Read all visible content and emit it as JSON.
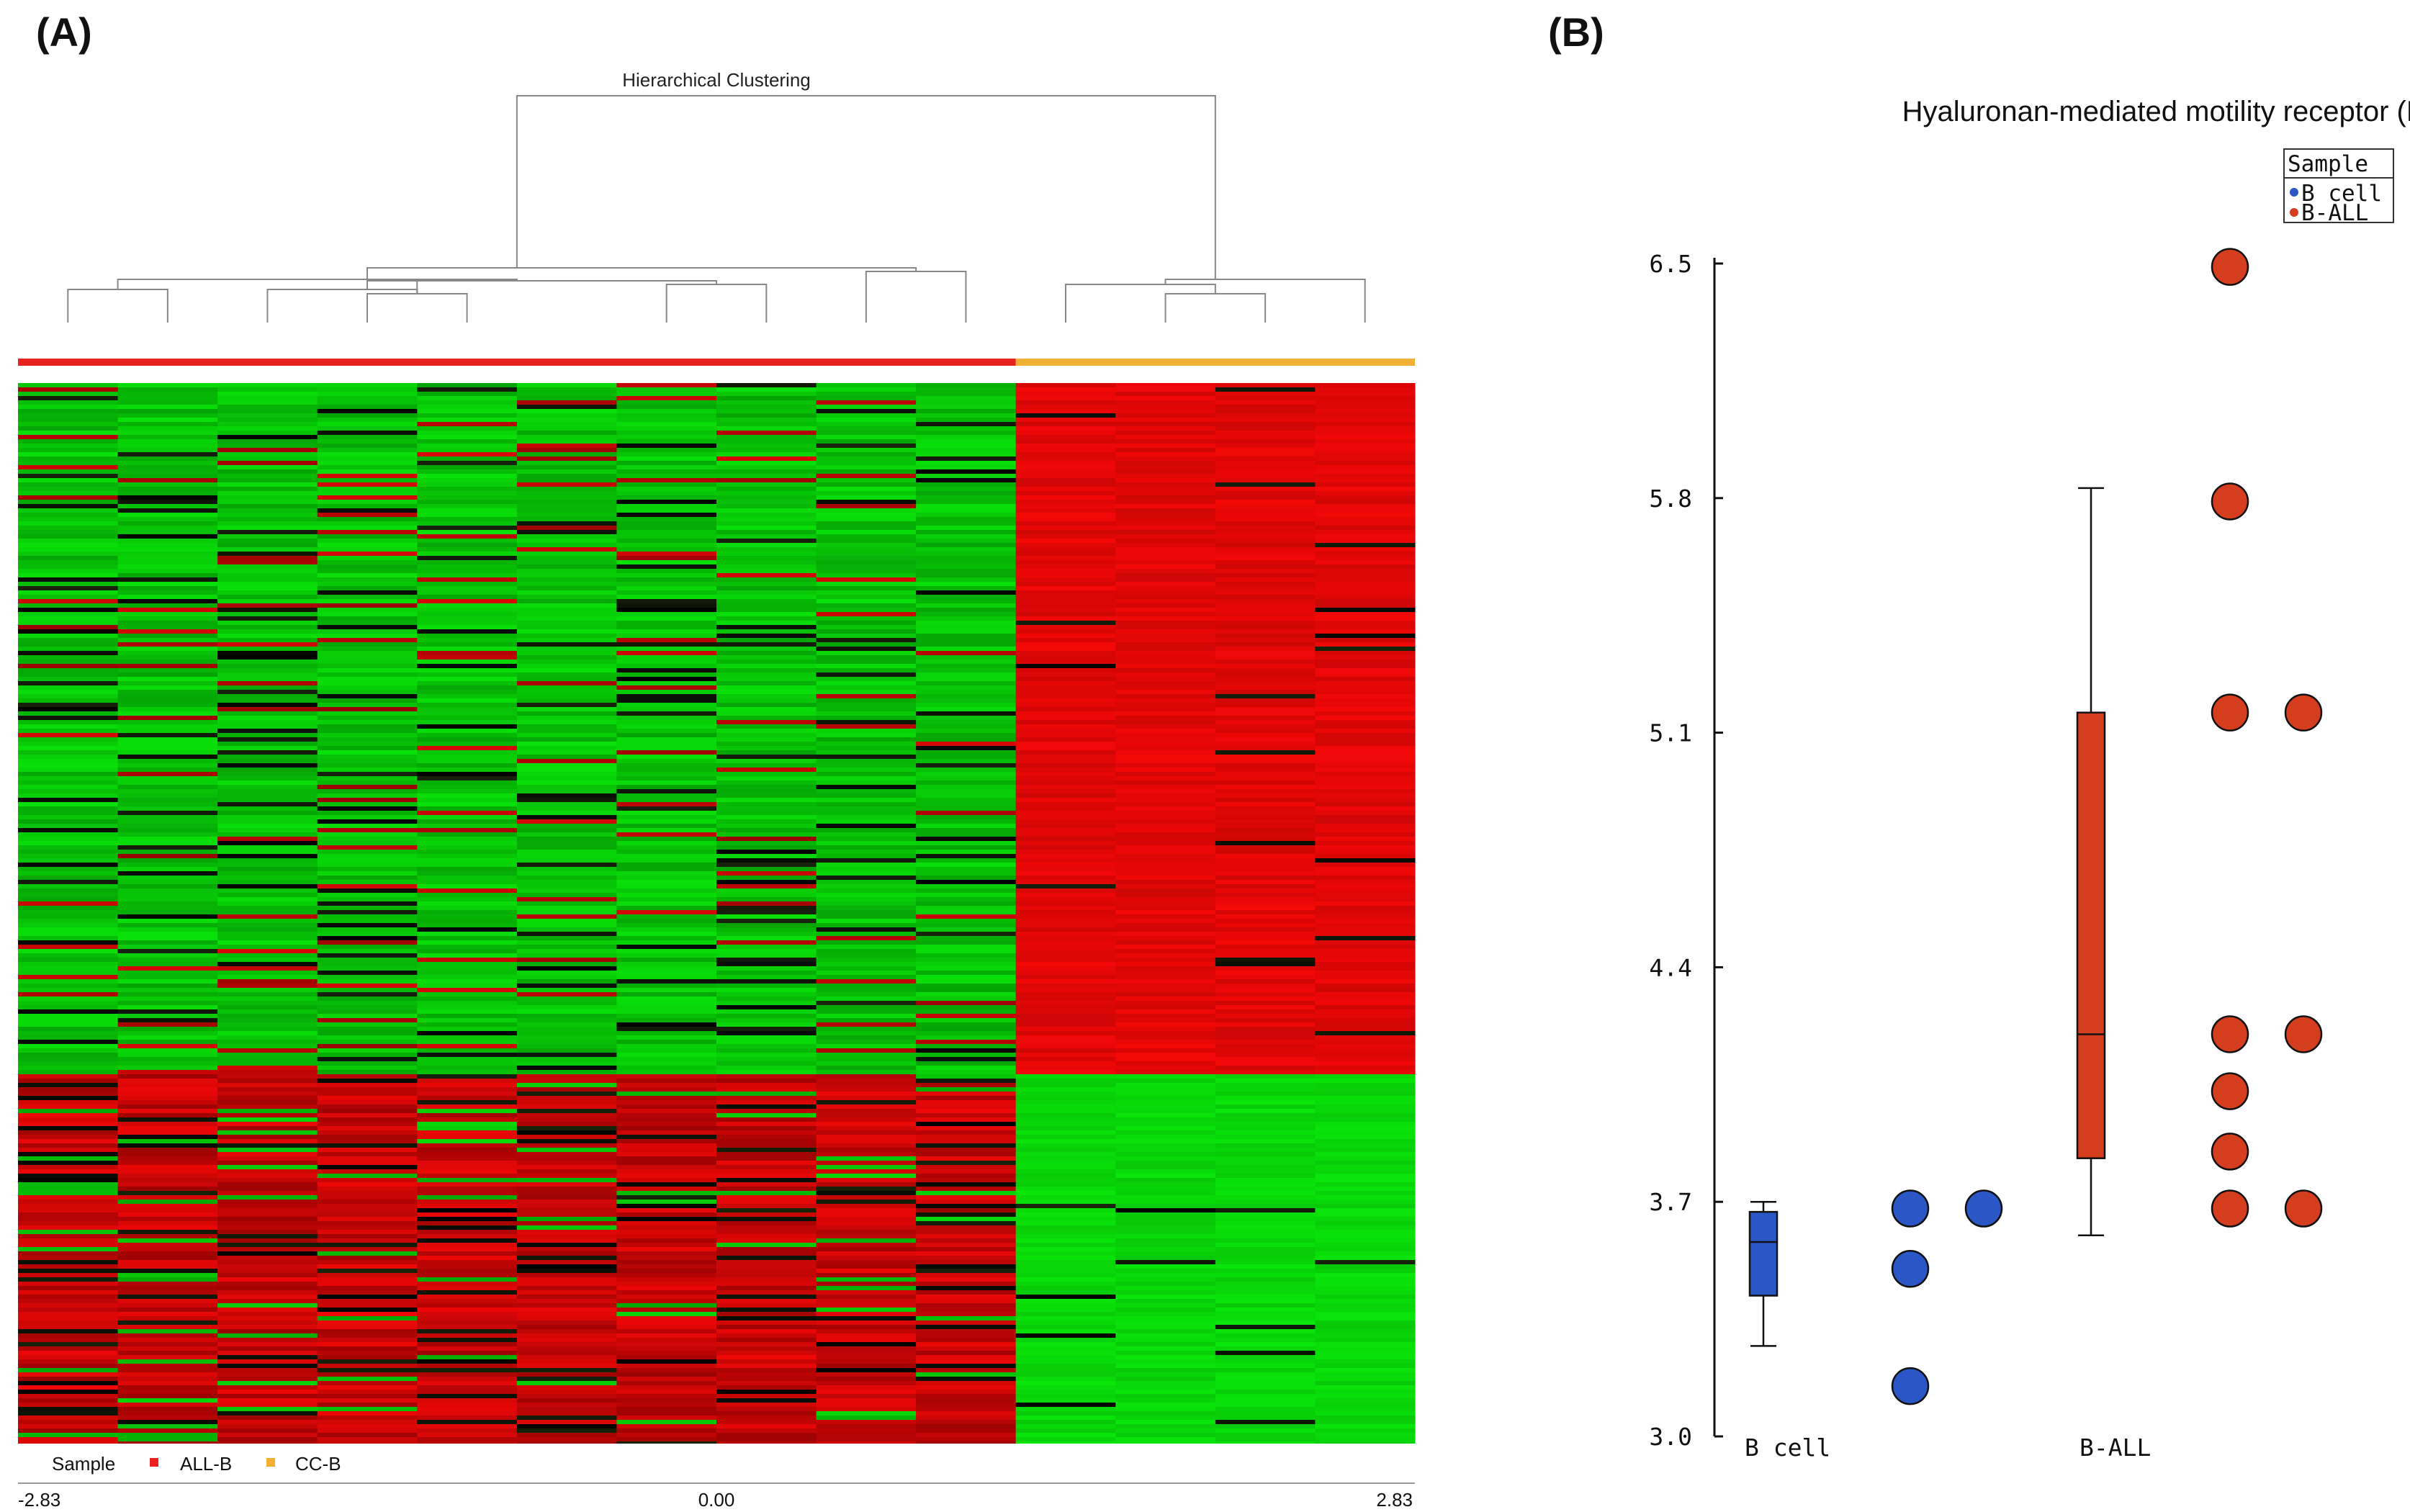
{
  "panel_a": {
    "label": "(A)",
    "title": "Hierarchical Clustering",
    "legend": {
      "heading": "Sample",
      "items": [
        {
          "name": "ALL-B",
          "color": "#e8221e"
        },
        {
          "name": "CC-B",
          "color": "#f2b035"
        }
      ]
    },
    "scale": {
      "min": "-2.83",
      "mid": "0.00",
      "max": "2.83"
    },
    "colors": {
      "high": "#e00000",
      "low": "#00d000",
      "mid": "#000000"
    }
  },
  "panel_b": {
    "label": "(B)",
    "title": "Hyaluronan-mediated motility receptor (RHAMM) (HMMR)",
    "legend_heading": "Sample",
    "legend_items": [
      {
        "name": "B cell",
        "color": "#2a56c6"
      },
      {
        "name": "B-ALL",
        "color": "#d43d1e"
      }
    ],
    "y_tick_labels": [
      "6.5",
      "5.8",
      "5.1",
      "4.4",
      "3.7",
      "3.0"
    ],
    "x_tick_labels": [
      "B cell",
      "B-ALL"
    ]
  },
  "chart_data": [
    {
      "type": "heatmap",
      "title": "Hierarchical Clustering",
      "groups": [
        {
          "name": "ALL-B",
          "columns": 10
        },
        {
          "name": "CC-B",
          "columns": 4
        }
      ],
      "row_blocks": [
        {
          "fraction_of_rows": 0.65,
          "ALL-B": "down (green)",
          "CC-B": "up (red)"
        },
        {
          "fraction_of_rows": 0.35,
          "ALL-B": "up (red)",
          "CC-B": "down (green)"
        }
      ],
      "color_scale": {
        "min": -2.83,
        "mid": 0.0,
        "max": 2.83
      }
    },
    {
      "type": "scatter",
      "title": "Hyaluronan-mediated motility receptor (RHAMM) (HMMR)",
      "ylim": [
        3.0,
        6.5
      ],
      "yticks": [
        3.0,
        3.7,
        4.4,
        5.1,
        5.8,
        6.5
      ],
      "categories": [
        "B cell",
        "B-ALL"
      ],
      "boxes": [
        {
          "name": "B cell",
          "whisker_low": 3.27,
          "q1": 3.42,
          "median": 3.58,
          "q3": 3.67,
          "whisker_high": 3.7
        },
        {
          "name": "B-ALL",
          "whisker_low": 3.6,
          "q1": 3.83,
          "median": 4.2,
          "q3": 5.16,
          "whisker_high": 5.83
        }
      ],
      "series": [
        {
          "name": "B cell",
          "points": [
            {
              "col": 0,
              "value": 3.68
            },
            {
              "col": 1,
              "value": 3.68
            },
            {
              "col": 0,
              "value": 3.5
            },
            {
              "col": 0,
              "value": 3.15
            }
          ]
        },
        {
          "name": "B-ALL",
          "points": [
            {
              "col": 0,
              "value": 6.49
            },
            {
              "col": 0,
              "value": 5.79
            },
            {
              "col": 0,
              "value": 5.16
            },
            {
              "col": 1,
              "value": 5.16
            },
            {
              "col": 0,
              "value": 4.2
            },
            {
              "col": 1,
              "value": 4.2
            },
            {
              "col": 0,
              "value": 4.03
            },
            {
              "col": 0,
              "value": 3.85
            },
            {
              "col": 0,
              "value": 3.68
            },
            {
              "col": 1,
              "value": 3.68
            }
          ]
        }
      ]
    }
  ]
}
